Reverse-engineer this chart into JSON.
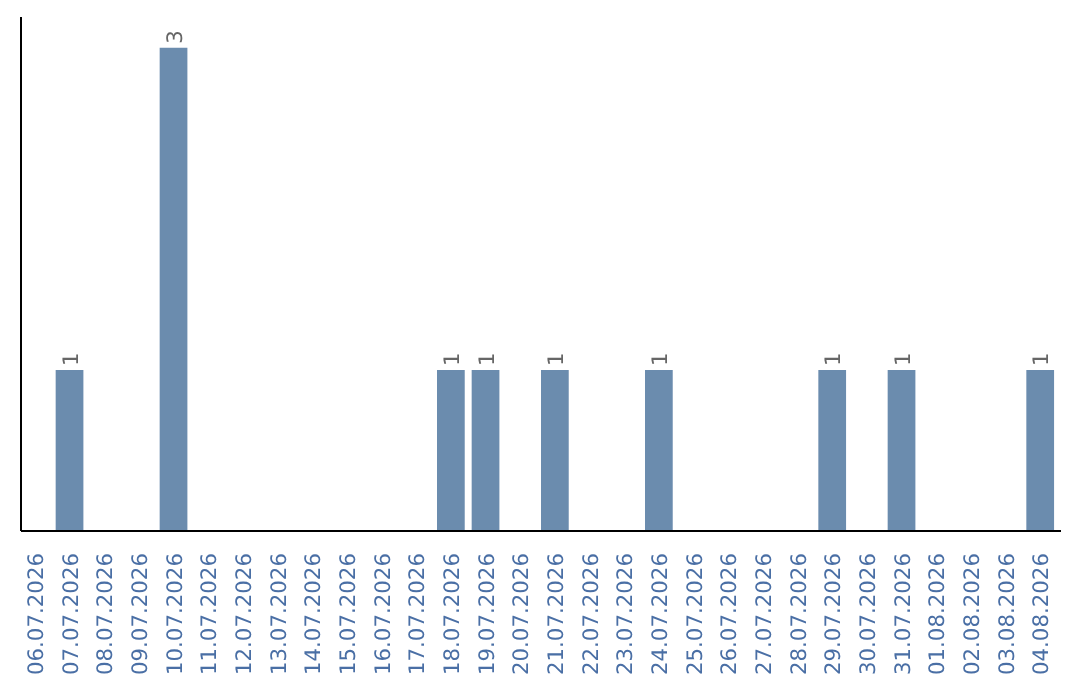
{
  "chart_data": {
    "type": "bar",
    "categories": [
      "06.07.2026",
      "07.07.2026",
      "08.07.2026",
      "09.07.2026",
      "10.07.2026",
      "11.07.2026",
      "12.07.2026",
      "13.07.2026",
      "14.07.2026",
      "15.07.2026",
      "16.07.2026",
      "17.07.2026",
      "18.07.2026",
      "19.07.2026",
      "20.07.2026",
      "21.07.2026",
      "22.07.2026",
      "23.07.2026",
      "24.07.2026",
      "25.07.2026",
      "26.07.2026",
      "27.07.2026",
      "28.07.2026",
      "29.07.2026",
      "30.07.2026",
      "31.07.2026",
      "01.08.2026",
      "02.08.2026",
      "03.08.2026",
      "04.08.2026"
    ],
    "values": [
      0,
      1,
      0,
      0,
      3,
      0,
      0,
      0,
      0,
      0,
      0,
      0,
      1,
      1,
      0,
      1,
      0,
      0,
      1,
      0,
      0,
      0,
      0,
      1,
      0,
      1,
      0,
      0,
      0,
      1
    ],
    "value_labels": [
      null,
      "1",
      null,
      null,
      "3",
      null,
      null,
      null,
      null,
      null,
      null,
      null,
      "1",
      "1",
      null,
      "1",
      null,
      null,
      "1",
      null,
      null,
      null,
      null,
      "1",
      null,
      "1",
      null,
      null,
      null,
      "1"
    ],
    "color": "#6b8cae",
    "grid": false
  }
}
